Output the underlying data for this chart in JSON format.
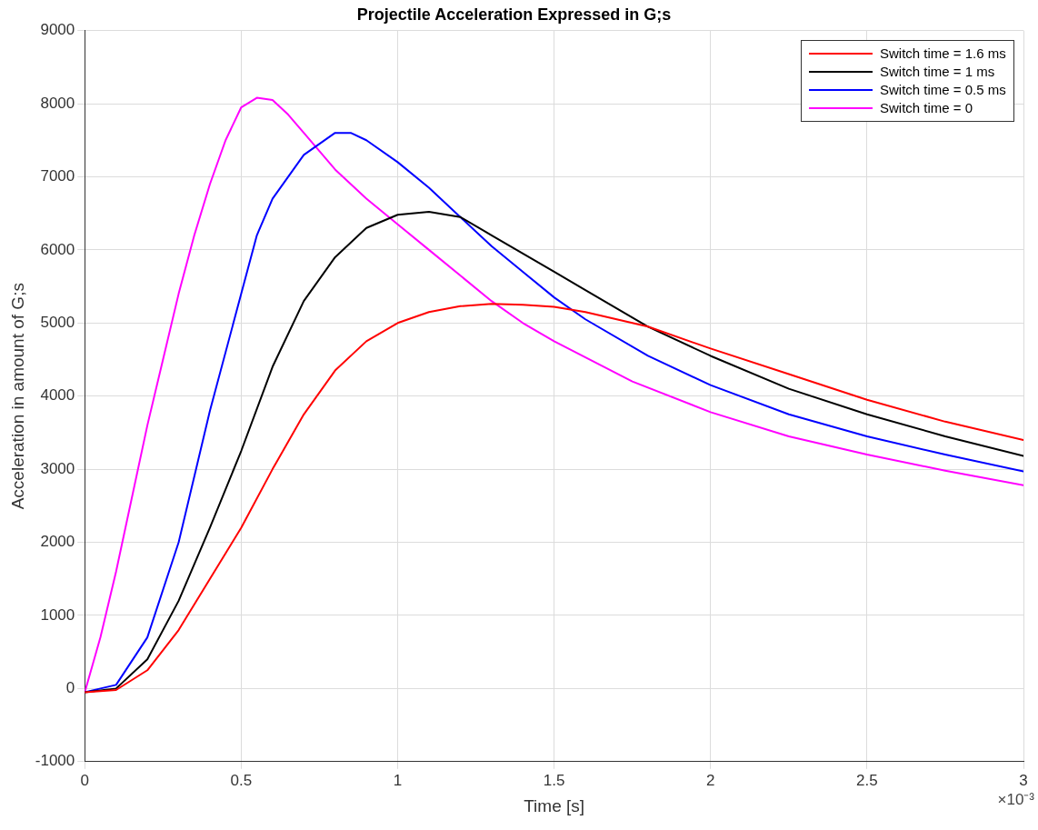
{
  "chart_data": {
    "type": "line",
    "title": "Projectile Acceleration Expressed in G;s",
    "xlabel": "Time [s]",
    "ylabel": "Acceleration in amount of G;s",
    "annotations": [
      "×10⁻³"
    ],
    "xlim": [
      0,
      3
    ],
    "xticks": [
      0,
      0.5,
      1,
      1.5,
      2,
      2.5,
      3
    ],
    "ylim": [
      -1000,
      9000
    ],
    "yticks": [
      -1000,
      0,
      1000,
      2000,
      3000,
      4000,
      5000,
      6000,
      7000,
      8000,
      9000
    ],
    "grid": true,
    "legend": "top right",
    "marker": "none",
    "line_style": "solid",
    "series": [
      {
        "name": "Switch time = 1.6 ms",
        "color": "#ff0000",
        "x": [
          0,
          0.1,
          0.2,
          0.3,
          0.4,
          0.5,
          0.6,
          0.7,
          0.8,
          0.9,
          1,
          1.1,
          1.2,
          1.3,
          1.4,
          1.5,
          1.6,
          1.8,
          2,
          2.25,
          2.5,
          2.75,
          3
        ],
        "values": [
          -50,
          -20,
          250,
          800,
          1500,
          2200,
          3000,
          3750,
          4350,
          4750,
          5000,
          5150,
          5230,
          5260,
          5250,
          5220,
          5150,
          4950,
          4650,
          4300,
          3950,
          3650,
          3400
        ]
      },
      {
        "name": "Switch time = 1 ms",
        "color": "#000000",
        "x": [
          0,
          0.1,
          0.2,
          0.3,
          0.4,
          0.5,
          0.6,
          0.7,
          0.8,
          0.9,
          1,
          1.1,
          1.2,
          1.3,
          1.4,
          1.5,
          1.6,
          1.8,
          2,
          2.25,
          2.5,
          2.75,
          3
        ],
        "values": [
          -50,
          0,
          400,
          1200,
          2200,
          3250,
          4400,
          5300,
          5900,
          6300,
          6480,
          6520,
          6450,
          6200,
          5950,
          5700,
          5450,
          4950,
          4550,
          4100,
          3750,
          3450,
          3180
        ]
      },
      {
        "name": "Switch time = 0.5 ms",
        "color": "#0000ff",
        "x": [
          0,
          0.1,
          0.2,
          0.3,
          0.4,
          0.5,
          0.55,
          0.6,
          0.7,
          0.8,
          0.85,
          0.9,
          1,
          1.1,
          1.2,
          1.3,
          1.4,
          1.5,
          1.6,
          1.8,
          2,
          2.25,
          2.5,
          2.75,
          3
        ],
        "values": [
          -50,
          50,
          700,
          2000,
          3800,
          5400,
          6200,
          6700,
          7300,
          7600,
          7600,
          7500,
          7200,
          6850,
          6450,
          6050,
          5700,
          5350,
          5050,
          4550,
          4150,
          3750,
          3450,
          3200,
          2970
        ]
      },
      {
        "name": "Switch time = 0",
        "color": "#ff00ff",
        "x": [
          0,
          0.05,
          0.1,
          0.15,
          0.2,
          0.25,
          0.3,
          0.35,
          0.4,
          0.45,
          0.5,
          0.55,
          0.6,
          0.65,
          0.7,
          0.8,
          0.9,
          1,
          1.1,
          1.2,
          1.3,
          1.4,
          1.5,
          1.75,
          2,
          2.25,
          2.5,
          2.75,
          3
        ],
        "values": [
          -50,
          700,
          1600,
          2600,
          3600,
          4500,
          5400,
          6200,
          6900,
          7500,
          7950,
          8080,
          8050,
          7850,
          7600,
          7100,
          6700,
          6350,
          6000,
          5650,
          5300,
          5000,
          4750,
          4200,
          3780,
          3450,
          3200,
          2980,
          2780
        ]
      }
    ]
  }
}
